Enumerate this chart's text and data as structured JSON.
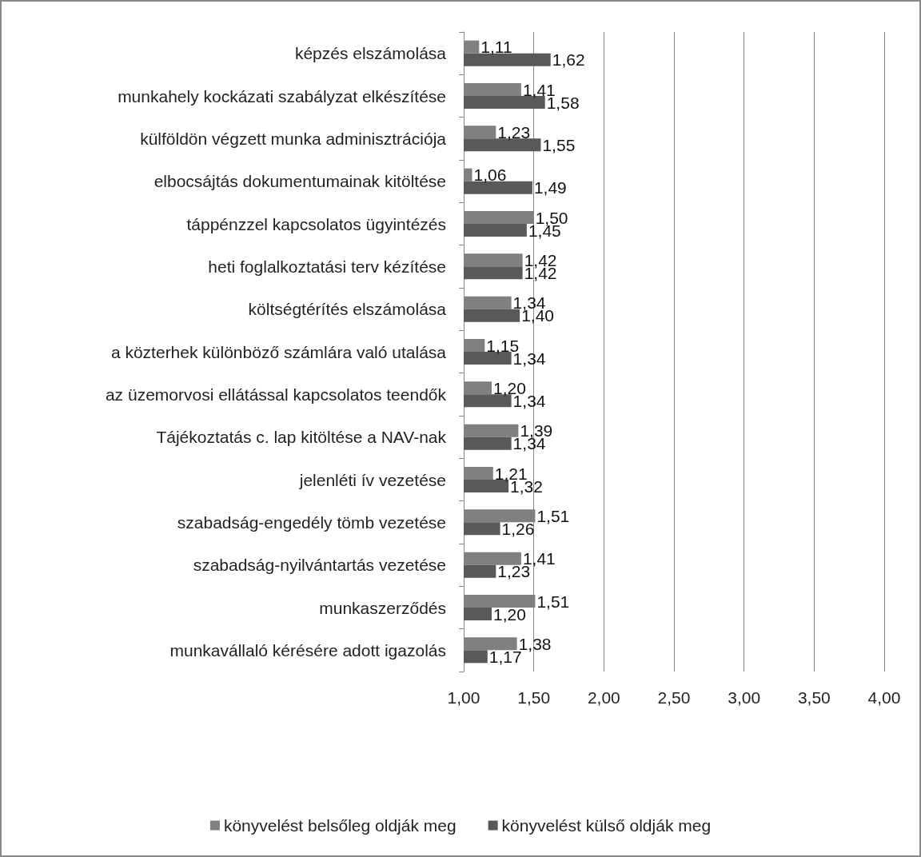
{
  "chart_data": {
    "type": "bar",
    "orientation": "horizontal",
    "categories": [
      "képzés elszámolása",
      "munkahely kockázati szabályzat elkészítése",
      "külföldön végzett munka adminisztrációja",
      "elbocsájtás dokumentumainak kitöltése",
      "táppénzzel kapcsolatos ügyintézés",
      "heti foglalkoztatási terv kézítése",
      "költségtérítés elszámolása",
      "a közterhek különböző számlára való utalása",
      "az üzemorvosi ellátással kapcsolatos teendők",
      "Tájékoztatás c. lap kitöltése a NAV-nak",
      "jelenléti ív vezetése",
      "szabadság-engedély tömb vezetése",
      "szabadság-nyilvántartás vezetése",
      "munkaszerződés",
      "munkavállaló kérésére adott igazolás"
    ],
    "series": [
      {
        "name": "könyvelést belsőleg oldják meg",
        "color": "#808080",
        "values": [
          1.11,
          1.41,
          1.23,
          1.06,
          1.5,
          1.42,
          1.34,
          1.15,
          1.2,
          1.39,
          1.21,
          1.51,
          1.41,
          1.51,
          1.38
        ],
        "value_labels": [
          "1,11",
          "1,41",
          "1,23",
          "1,06",
          "1,50",
          "1,42",
          "1,34",
          "1,15",
          "1,20",
          "1,39",
          "1,21",
          "1,51",
          "1,41",
          "1,51",
          "1,38"
        ]
      },
      {
        "name": "könyvelést külső oldják meg",
        "color": "#595959",
        "values": [
          1.62,
          1.58,
          1.55,
          1.49,
          1.45,
          1.42,
          1.4,
          1.34,
          1.34,
          1.34,
          1.32,
          1.26,
          1.23,
          1.2,
          1.17
        ],
        "value_labels": [
          "1,62",
          "1,58",
          "1,55",
          "1,49",
          "1,45",
          "1,42",
          "1,40",
          "1,34",
          "1,34",
          "1,34",
          "1,32",
          "1,26",
          "1,23",
          "1,20",
          "1,17"
        ]
      }
    ],
    "xlim": [
      1,
      4
    ],
    "xticks": [
      {
        "value": 1,
        "label": "1,00"
      },
      {
        "value": 1.5,
        "label": "1,50"
      },
      {
        "value": 2,
        "label": "2,00"
      },
      {
        "value": 2.5,
        "label": "2,50"
      },
      {
        "value": 3,
        "label": "3,00"
      },
      {
        "value": 3.5,
        "label": "3,50"
      },
      {
        "value": 4,
        "label": "4,00"
      }
    ],
    "grid": "x",
    "legend": "bottom"
  }
}
